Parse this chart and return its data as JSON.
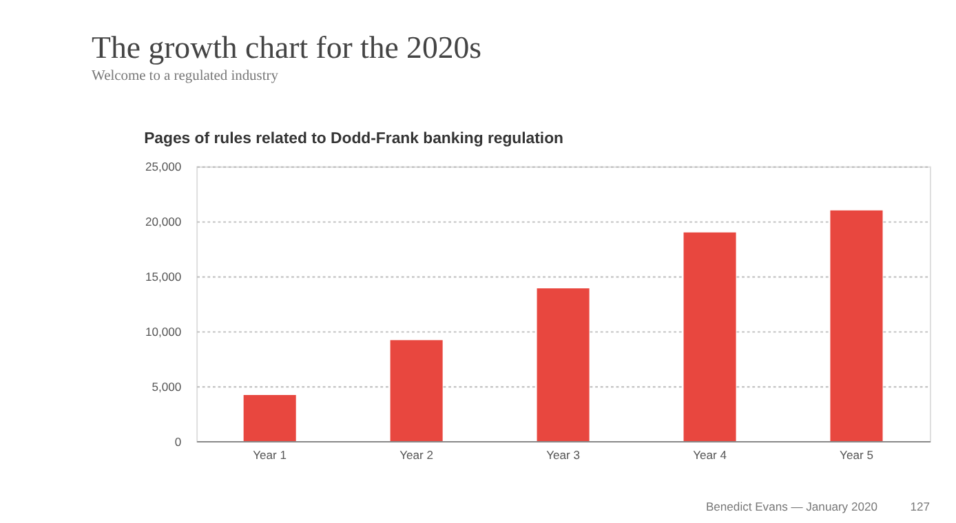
{
  "chart_data": {
    "type": "bar",
    "title": "The growth chart for the 2020s",
    "subtitle": "Welcome to a regulated industry",
    "annotations": [
      "Pages of rules related to Dodd-Frank banking regulation",
      "Benedict Evans — January 2020",
      "127"
    ],
    "categories": [
      "Year 1",
      "Year 2",
      "Year 3",
      "Year 4",
      "Year 5"
    ],
    "values": [
      4200,
      9200,
      13900,
      19000,
      21000
    ],
    "color": "#e8473f",
    "ylim": [
      0,
      25000
    ],
    "yticks": [
      {
        "value": 0,
        "label": "0"
      },
      {
        "value": 5000,
        "label": "5,000"
      },
      {
        "value": 10000,
        "label": "10,000"
      },
      {
        "value": 15000,
        "label": "15,000"
      },
      {
        "value": 20000,
        "label": "20,000"
      },
      {
        "value": 25000,
        "label": "25,000"
      }
    ],
    "grid": "y"
  }
}
